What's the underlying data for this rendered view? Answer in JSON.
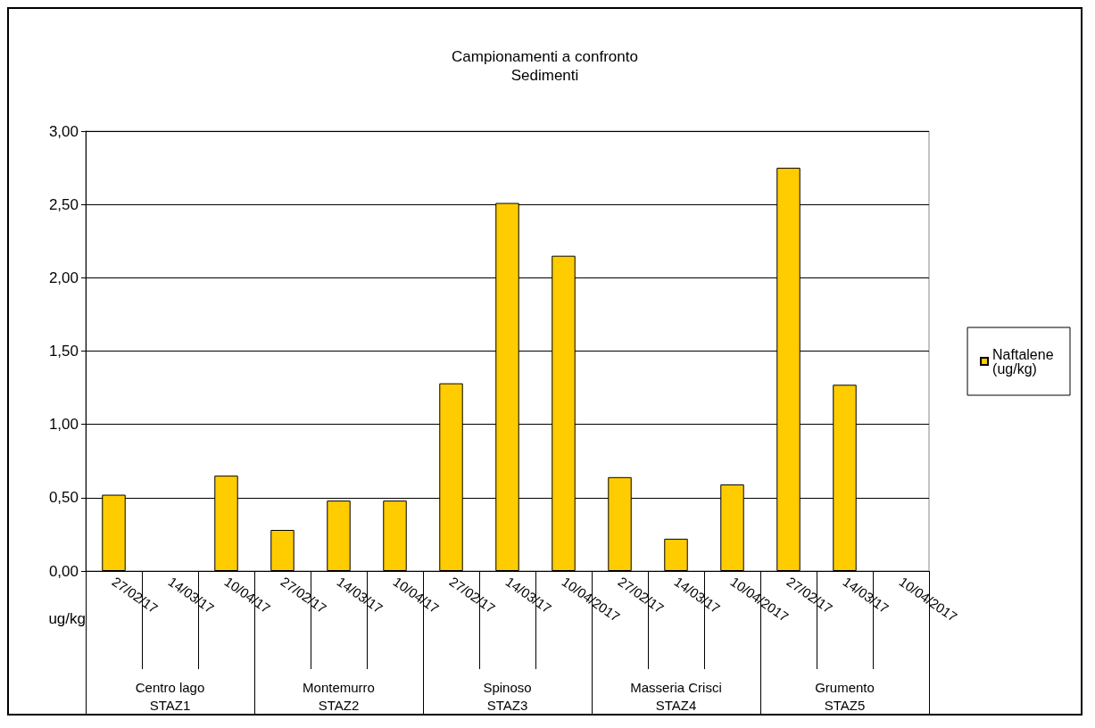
{
  "chart_data": {
    "type": "bar",
    "title": "Campionamenti a confronto",
    "subtitle": "Sedimenti",
    "ylabel": "ug/kg",
    "categories": [
      "27/02/17",
      "14/03/17",
      "10/04/17",
      "27/02/17",
      "14/03/17",
      "10/04/17",
      "27/02/17",
      "14/03/17",
      "10/04/2017",
      "27/02/17",
      "14/03/17",
      "10/04/2017",
      "27/02/17",
      "14/03/17",
      "10/04/2017"
    ],
    "series": [
      {
        "name": "Naftalene (ug/kg)",
        "color": "#ffcc00",
        "values": [
          0.52,
          null,
          0.65,
          0.28,
          0.48,
          0.48,
          1.28,
          2.51,
          2.15,
          0.64,
          0.22,
          0.59,
          2.75,
          1.27,
          null
        ]
      }
    ],
    "annotations": [
      "Centro lago\nSTAZ1",
      "Montemurro\nSTAZ2",
      "Spinoso\nSTAZ3",
      "Masseria Crisci\nSTAZ4",
      "Grumento\nSTAZ5"
    ],
    "ylim": [
      0,
      3
    ],
    "yticks": [
      {
        "value": 0,
        "label": "0,00"
      },
      {
        "value": 0.5,
        "label": "0,50"
      },
      {
        "value": 1,
        "label": "1,00"
      },
      {
        "value": 1.5,
        "label": "1,50"
      },
      {
        "value": 2,
        "label": "2,00"
      },
      {
        "value": 2.5,
        "label": "2,50"
      },
      {
        "value": 3,
        "label": "3,00"
      }
    ],
    "grid": "y",
    "legend": "right"
  }
}
